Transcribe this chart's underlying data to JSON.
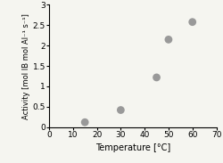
{
  "x": [
    15,
    30,
    45,
    50,
    60
  ],
  "y": [
    0.12,
    0.42,
    1.22,
    2.15,
    2.58
  ],
  "xlabel": "Temperature [°C]",
  "ylabel": "Activity [mol IB mol Al⁻¹ s⁻¹]",
  "xlim": [
    0,
    70
  ],
  "ylim": [
    0,
    3
  ],
  "xticks": [
    0,
    10,
    20,
    30,
    40,
    50,
    60,
    70
  ],
  "ytick_vals": [
    0,
    0.5,
    1.0,
    1.5,
    2.0,
    2.5,
    3.0
  ],
  "ytick_labels": [
    "0",
    "0.5",
    "1",
    "1.5",
    "2",
    "2.5",
    "3"
  ],
  "marker_color": "#999999",
  "marker_size": 40,
  "background_color": "#f5f5f0",
  "xlabel_fontsize": 7,
  "ylabel_fontsize": 6,
  "tick_fontsize": 6.5
}
